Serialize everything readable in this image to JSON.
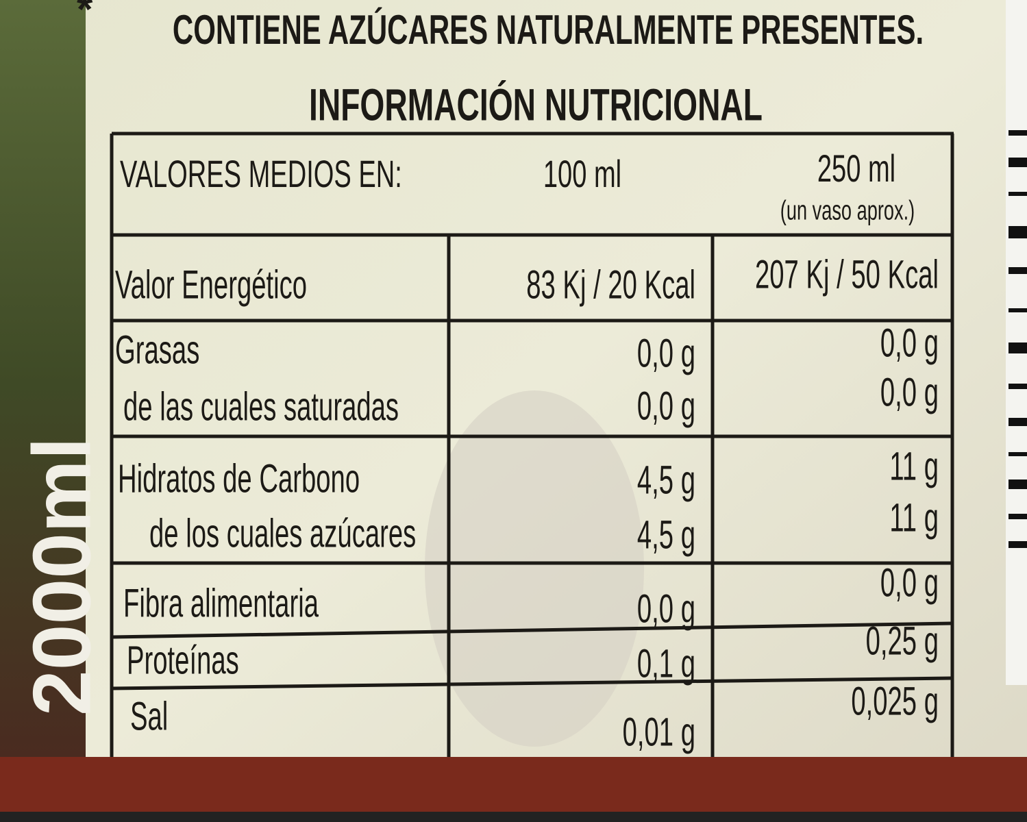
{
  "side_text": "2000ml",
  "asterisk": "*",
  "notice": "CONTIENE AZÚCARES NATURALMENTE PRESENTES.",
  "title": "INFORMACIÓN NUTRICIONAL",
  "header": {
    "label": "VALORES MEDIOS EN:",
    "col1": "100 ml",
    "col2": "250 ml",
    "col2_note": "(un vaso aprox.)"
  },
  "rows": [
    [
      "Valor Energético",
      "83 Kj / 20 Kcal",
      "207 Kj / 50 Kcal"
    ],
    [
      "Grasas",
      "0,0 g",
      "0,0 g"
    ],
    [
      "de las cuales saturadas",
      "0,0 g",
      "0,0 g"
    ],
    [
      "Hidratos de Carbono",
      "4,5 g",
      "11 g"
    ],
    [
      "de los cuales azúcares",
      "4,5 g",
      "11 g"
    ],
    [
      "Fibra alimentaria",
      "0,0 g",
      "0,0 g"
    ],
    [
      "Proteínas",
      "0,1 g",
      "0,25 g"
    ],
    [
      "Sal",
      "0,01 g",
      "0,025 g"
    ]
  ]
}
